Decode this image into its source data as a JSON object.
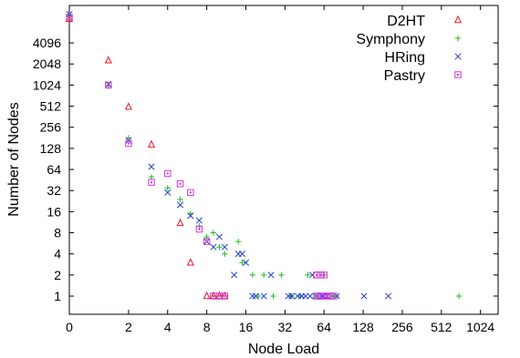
{
  "chart_data": {
    "type": "scatter",
    "title": "",
    "xlabel": "Node Load",
    "ylabel": "Number of Nodes",
    "x_scale": "log2 (0 shown at left edge)",
    "y_scale": "log2 (1 at bottom tick)",
    "x_ticks": [
      "0",
      "2",
      "4",
      "8",
      "16",
      "32",
      "64",
      "128",
      "256",
      "512",
      "1024"
    ],
    "y_ticks": [
      "1",
      "2",
      "4",
      "8",
      "16",
      "32",
      "64",
      "128",
      "256",
      "512",
      "1024",
      "2048",
      "4096"
    ],
    "xlim": [
      0.7,
      1400
    ],
    "ylim": [
      0.55,
      14000
    ],
    "grid": false,
    "legend_position": "top-right",
    "series": [
      {
        "name": "D2HT",
        "marker": "triangle",
        "color": "#e41a1c",
        "points": [
          [
            0,
            9000
          ],
          [
            1.4,
            2300
          ],
          [
            2,
            500
          ],
          [
            3,
            145
          ],
          [
            5,
            11
          ],
          [
            6,
            3
          ],
          [
            8,
            1
          ],
          [
            9,
            1
          ],
          [
            10,
            1
          ],
          [
            11,
            1
          ]
        ]
      },
      {
        "name": "Symphony",
        "marker": "plus",
        "color": "#22bb22",
        "points": [
          [
            0,
            10000
          ],
          [
            1.4,
            1000
          ],
          [
            2,
            180
          ],
          [
            3,
            50
          ],
          [
            4,
            35
          ],
          [
            5,
            24
          ],
          [
            6,
            15
          ],
          [
            7,
            10
          ],
          [
            8,
            7
          ],
          [
            9,
            8
          ],
          [
            10,
            5
          ],
          [
            11,
            4
          ],
          [
            14,
            6
          ],
          [
            15,
            3
          ],
          [
            18,
            2
          ],
          [
            20,
            1
          ],
          [
            22,
            2
          ],
          [
            26,
            1
          ],
          [
            30,
            2
          ],
          [
            36,
            1
          ],
          [
            42,
            1
          ],
          [
            48,
            2
          ],
          [
            56,
            1
          ],
          [
            64,
            2
          ],
          [
            74,
            1
          ],
          [
            80,
            1
          ],
          [
            700,
            1
          ]
        ]
      },
      {
        "name": "HRing",
        "marker": "cross",
        "color": "#1f3fd0",
        "points": [
          [
            0,
            10500
          ],
          [
            1.4,
            1050
          ],
          [
            2,
            165
          ],
          [
            3,
            70
          ],
          [
            4,
            30
          ],
          [
            5,
            20
          ],
          [
            6,
            14
          ],
          [
            7,
            12
          ],
          [
            8,
            6
          ],
          [
            9,
            5
          ],
          [
            10,
            7
          ],
          [
            11,
            5
          ],
          [
            13,
            2
          ],
          [
            14,
            4
          ],
          [
            15,
            4
          ],
          [
            16,
            3
          ],
          [
            18,
            1
          ],
          [
            19,
            1
          ],
          [
            22,
            1
          ],
          [
            25,
            2
          ],
          [
            34,
            1
          ],
          [
            36,
            1
          ],
          [
            40,
            1
          ],
          [
            43,
            1
          ],
          [
            46,
            1
          ],
          [
            50,
            1
          ],
          [
            52,
            2
          ],
          [
            56,
            1
          ],
          [
            62,
            1
          ],
          [
            64,
            1
          ],
          [
            68,
            1
          ],
          [
            80,
            1
          ],
          [
            130,
            1
          ],
          [
            200,
            1
          ]
        ]
      },
      {
        "name": "Pastry",
        "marker": "square",
        "color": "#d631d6",
        "points": [
          [
            0,
            9500
          ],
          [
            1.4,
            1024
          ],
          [
            2,
            150
          ],
          [
            3,
            42
          ],
          [
            4,
            56
          ],
          [
            5,
            40
          ],
          [
            6,
            30
          ],
          [
            7,
            9
          ],
          [
            8,
            6
          ],
          [
            9,
            1
          ],
          [
            10,
            1
          ],
          [
            11,
            1
          ],
          [
            56,
            2
          ],
          [
            60,
            2
          ],
          [
            64,
            2
          ],
          [
            56,
            1
          ],
          [
            60,
            1
          ],
          [
            64,
            1
          ],
          [
            68,
            1
          ],
          [
            72,
            1
          ],
          [
            76,
            1
          ]
        ]
      }
    ]
  }
}
